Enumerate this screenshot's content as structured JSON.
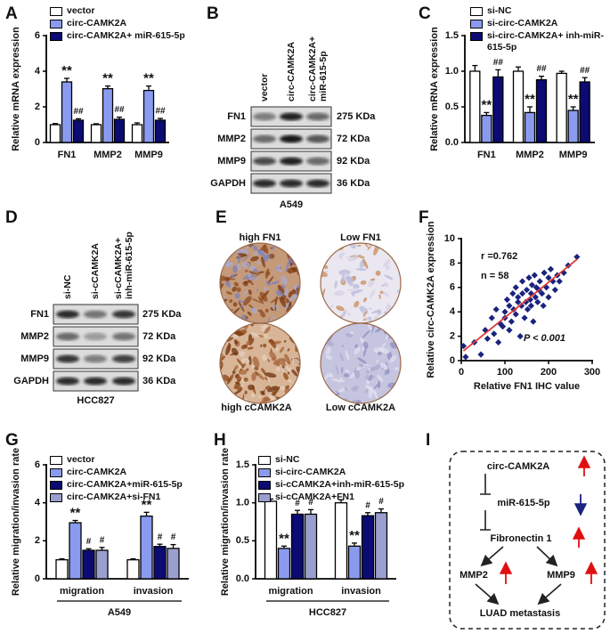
{
  "panel_labels": [
    "A",
    "B",
    "C",
    "D",
    "E",
    "F",
    "G",
    "H",
    "I"
  ],
  "chart_data": [
    {
      "type": "bar",
      "ylabel": "Relative mRNA expression",
      "categories": [
        "FN1",
        "MMP2",
        "MMP9"
      ],
      "ylim": [
        0,
        6
      ],
      "yticks": [
        0,
        2,
        4,
        6
      ],
      "series": [
        {
          "name": "vector",
          "color": "#ffffff",
          "values": [
            1,
            1,
            1
          ],
          "errors": [
            0.06,
            0.05,
            0.1
          ]
        },
        {
          "name": "circ-CAMK2A",
          "color": "#8a9bef",
          "values": [
            3.4,
            3.02,
            2.92
          ],
          "errors": [
            0.2,
            0.15,
            0.25
          ],
          "significance": [
            "**",
            "**",
            "**"
          ]
        },
        {
          "name": "circ-CAMK2A+ miR-615-5p",
          "color": "#0b0b73",
          "values": [
            1.25,
            1.3,
            1.25
          ],
          "errors": [
            0.08,
            0.12,
            0.1
          ],
          "significance": [
            "##",
            "##",
            "##"
          ]
        }
      ]
    },
    {
      "type": "bar",
      "ylabel": "Relative mRNA expression",
      "categories": [
        "FN1",
        "MMP2",
        "MMP9"
      ],
      "ylim": [
        0,
        1.5
      ],
      "yticks": [
        {
          "value": 0,
          "label": "0.0"
        },
        {
          "value": 0.5,
          "label": "0.5"
        },
        {
          "value": 1,
          "label": "1.0"
        },
        {
          "value": 1.5,
          "label": "1.5"
        }
      ],
      "series": [
        {
          "name": "si-NC",
          "color": "#ffffff",
          "values": [
            1,
            1,
            0.97
          ],
          "errors": [
            0.08,
            0.06,
            0.03
          ]
        },
        {
          "name": "si-circ-CAMK2A",
          "color": "#8a9bef",
          "values": [
            0.38,
            0.42,
            0.45
          ],
          "errors": [
            0.04,
            0.08,
            0.05
          ],
          "significance": [
            "**",
            "**",
            "**"
          ]
        },
        {
          "name": "si-circ-CAMK2A+ inh-miR-615-5p",
          "color": "#0b0b73",
          "values": [
            0.92,
            0.88,
            0.85
          ],
          "errors": [
            0.1,
            0.05,
            0.06
          ],
          "significance": [
            "##",
            "##",
            "##"
          ]
        }
      ]
    },
    {
      "type": "scatter",
      "xlabel": "Relative FN1 IHC value",
      "ylabel": "Relative circ-CAMK2A expression",
      "xlim": [
        0,
        300
      ],
      "xticks": [
        0,
        100,
        200,
        300
      ],
      "ylim": [
        0,
        10
      ],
      "yticks": [
        0,
        2,
        4,
        6,
        8,
        10
      ],
      "color": "#1a237e",
      "x": [
        5,
        10,
        30,
        45,
        55,
        60,
        70,
        75,
        80,
        85,
        90,
        95,
        100,
        100,
        105,
        110,
        110,
        115,
        118,
        120,
        125,
        125,
        130,
        130,
        135,
        138,
        140,
        140,
        145,
        148,
        150,
        152,
        155,
        158,
        160,
        160,
        162,
        165,
        168,
        170,
        172,
        175,
        178,
        180,
        185,
        188,
        190,
        195,
        200,
        200,
        205,
        210,
        215,
        220,
        225,
        235,
        245,
        265
      ],
      "y": [
        1.2,
        0.3,
        1.5,
        0.5,
        2.5,
        1.8,
        3.5,
        2.2,
        4.2,
        1.5,
        3,
        2.8,
        4,
        3.5,
        5,
        2.5,
        4.5,
        3.2,
        5.5,
        4.2,
        6,
        3.8,
        4.8,
        5.2,
        2,
        4.5,
        5.5,
        6.5,
        3.5,
        4.8,
        5.8,
        4.2,
        6.8,
        5,
        4.5,
        5.5,
        6.2,
        3.2,
        7,
        5.2,
        6,
        4.8,
        5.8,
        6.5,
        5.5,
        4.5,
        7.2,
        6,
        5.2,
        6.8,
        7.5,
        6.5,
        5.8,
        7,
        6.5,
        7.2,
        7.8,
        8.5
      ],
      "fit": {
        "x": [
          5,
          265
        ],
        "y": [
          0.8,
          8.3
        ]
      },
      "fit_color": "#e53935",
      "annotations": [
        "r =0.762",
        "n = 58",
        "P < 0.001"
      ]
    },
    {
      "type": "bar",
      "ylabel": "Relative migration/invasion rate",
      "xlabel": "A549",
      "categories": [
        "migration",
        "invasion"
      ],
      "ylim": [
        0,
        6
      ],
      "yticks": [
        0,
        2,
        4,
        6
      ],
      "series": [
        {
          "name": "vector",
          "color": "#ffffff",
          "values": [
            1,
            1
          ],
          "errors": [
            0.05,
            0.05
          ]
        },
        {
          "name": "circ-CAMK2A",
          "color": "#8a9bef",
          "values": [
            2.95,
            3.3
          ],
          "errors": [
            0.12,
            0.2
          ],
          "significance": [
            "**",
            "**"
          ]
        },
        {
          "name": "circ-CAMK2A+miR-615-5p",
          "color": "#0b0b73",
          "values": [
            1.5,
            1.7
          ],
          "errors": [
            0.08,
            0.12
          ],
          "significance": [
            "#",
            "#"
          ]
        },
        {
          "name": "circ-CAMK2A+si-FN1",
          "color": "#9b9fcf",
          "values": [
            1.5,
            1.6
          ],
          "errors": [
            0.15,
            0.2
          ],
          "significance": [
            "#",
            "#"
          ]
        }
      ]
    },
    {
      "type": "bar",
      "ylabel": "Relative migration/invasion rate",
      "xlabel": "HCC827",
      "categories": [
        "migration",
        "invasion"
      ],
      "ylim": [
        0,
        1.5
      ],
      "yticks": [
        {
          "value": 0,
          "label": "0.0"
        },
        {
          "value": 0.5,
          "label": "0.5"
        },
        {
          "value": 1,
          "label": "1.0"
        },
        {
          "value": 1.5,
          "label": "1.5"
        }
      ],
      "series": [
        {
          "name": "si-NC",
          "color": "#ffffff",
          "values": [
            1.02,
            1
          ],
          "errors": [
            0.03,
            0.04
          ]
        },
        {
          "name": "si-circ-CAMK2A",
          "color": "#8a9bef",
          "values": [
            0.4,
            0.43
          ],
          "errors": [
            0.03,
            0.04
          ],
          "significance": [
            "**",
            "**"
          ]
        },
        {
          "name": "si-cCAMK2A+inh-miR-615-5p",
          "color": "#0b0b73",
          "values": [
            0.85,
            0.83
          ],
          "errors": [
            0.05,
            0.04
          ],
          "significance": [
            "#",
            "#"
          ]
        },
        {
          "name": "si-cCAMK2A+FN1",
          "color": "#9b9fcf",
          "values": [
            0.85,
            0.87
          ],
          "errors": [
            0.06,
            0.05
          ],
          "significance": [
            "#",
            "#"
          ]
        }
      ]
    }
  ],
  "blots": [
    {
      "lanes": [
        [
          "vector"
        ],
        [
          "circ-CAMK2A"
        ],
        [
          "circ-CAMK2A+",
          "miR-615-5p"
        ]
      ],
      "proteins": [
        "FN1",
        "MMP2",
        "MMP9",
        "GAPDH"
      ],
      "sizes": [
        "275 KDa",
        "72 KDa",
        "92 KDa",
        "36 KDa"
      ],
      "cell_line": "A549"
    },
    {
      "lanes": [
        [
          "si-NC"
        ],
        [
          "si-cCAMK2A"
        ],
        [
          "si-cCAMK2A+",
          "inh-miR-615-5p"
        ]
      ],
      "proteins": [
        "FN1",
        "MMP2",
        "MMP9",
        "GAPDH"
      ],
      "sizes": [
        "275 KDa",
        "72 KDa",
        "92 KDa",
        "36 KDa"
      ],
      "cell_line": "HCC827"
    }
  ],
  "ihc": {
    "top_labels": [
      "high FN1",
      "Low FN1"
    ],
    "bottom_labels": [
      "high cCAMK2A",
      "Low cCAMK2A"
    ]
  },
  "diagram": {
    "nodes": [
      "circ-CAMK2A",
      "miR-615-5p",
      "Fibronectin 1",
      "MMP2",
      "MMP9",
      "LUAD metastasis"
    ]
  }
}
